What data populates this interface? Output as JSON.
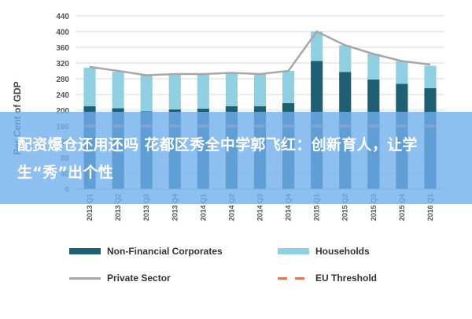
{
  "chart_data": {
    "type": "bar",
    "ylabel": "Per Cent of GDP",
    "ylim": [
      0,
      440
    ],
    "yticks": [
      0,
      40,
      80,
      120,
      160,
      200,
      240,
      280,
      320,
      360,
      400,
      440
    ],
    "categories": [
      "2013 Q1",
      "2013 Q2",
      "2013 Q3",
      "2013 Q4",
      "2014 Q1",
      "2014 Q2",
      "2014 Q3",
      "2014 Q4",
      "2015 Q1",
      "2015 Q2",
      "2015 Q3",
      "2015 Q4",
      "2016 Q1"
    ],
    "stacked": true,
    "series": [
      {
        "name": "Non-Financial Corporates",
        "type": "bar",
        "color": "#1f5f73",
        "values": [
          210,
          205,
          197,
          202,
          204,
          210,
          210,
          218,
          325,
          297,
          278,
          267,
          256
        ]
      },
      {
        "name": "Households",
        "type": "bar",
        "color": "#8fd0e2",
        "values": [
          98,
          93,
          92,
          90,
          88,
          85,
          82,
          82,
          75,
          68,
          65,
          58,
          57
        ]
      },
      {
        "name": "Private Sector",
        "type": "line",
        "color": "#a7a7a7",
        "values": [
          310,
          300,
          289,
          292,
          292,
          295,
          292,
          300,
          400,
          365,
          343,
          325,
          316
        ]
      },
      {
        "name": "EU Threshold",
        "type": "line",
        "style": "dashed",
        "color": "#e8744a",
        "values": [
          160,
          160,
          160,
          160,
          160,
          160,
          160,
          160,
          160,
          160,
          160,
          160,
          160
        ]
      }
    ],
    "legend_position": "bottom",
    "grid": true
  },
  "overlay": {
    "text": "配资爆仓还用还吗 花都区秀全中学郭飞红：创新育人，让学生“秀”出个性"
  }
}
